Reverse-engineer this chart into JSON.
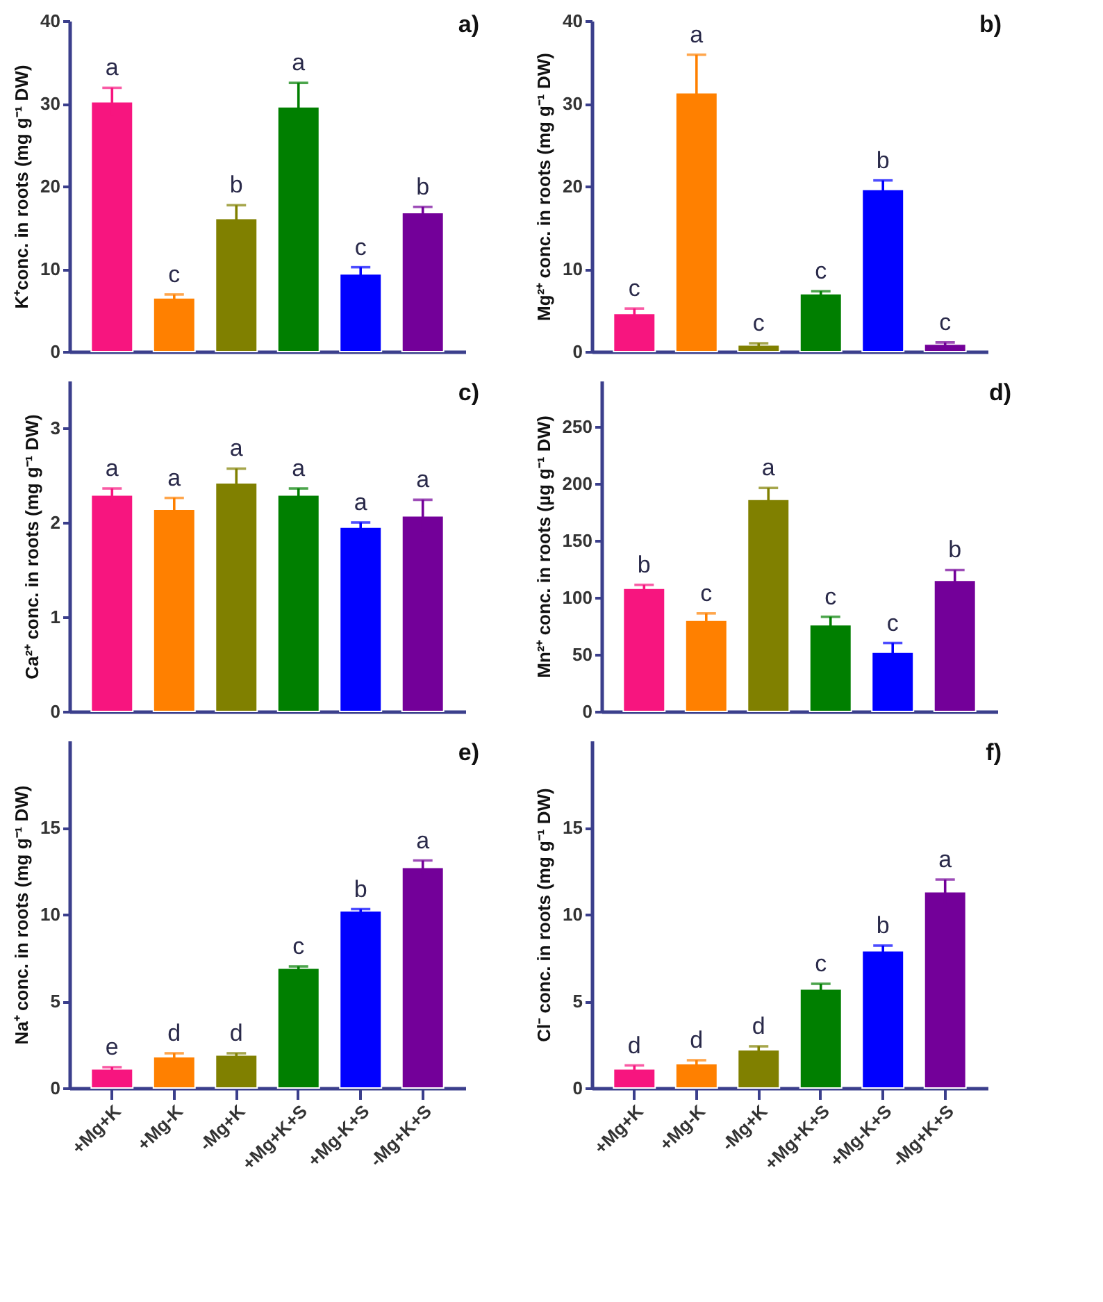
{
  "chart_data": [
    {
      "type": "bar",
      "title": "a)",
      "ylabel": "K⁺conc. in roots (mg g⁻¹ DW)",
      "categories": [
        "+Mg+K",
        "+Mg-K",
        "-Mg+K",
        "+Mg+K+S",
        "+Mg-K+S",
        "-Mg+K+S"
      ],
      "colors": [
        "#f7157f",
        "#ff8000",
        "#808000",
        "#007f00",
        "#0000ff",
        "#730099"
      ],
      "values": [
        30.2,
        6.5,
        16.1,
        29.6,
        9.4,
        16.8
      ],
      "errors": [
        1.7,
        0.4,
        1.6,
        2.9,
        0.8,
        0.7
      ],
      "ylim": [
        0,
        40
      ],
      "yticks": [
        0,
        10,
        20,
        30,
        40
      ],
      "tick_labels": "y",
      "annotations": [
        {
          "text": "a",
          "x": "+Mg+K",
          "y": 31.9
        },
        {
          "text": "c",
          "x": "+Mg-K",
          "y": 6.9
        },
        {
          "text": "b",
          "x": "-Mg+K",
          "y": 17.7
        },
        {
          "text": "a",
          "x": "+Mg+K+S",
          "y": 32.5
        },
        {
          "text": "c",
          "x": "+Mg-K+S",
          "y": 10.2
        },
        {
          "text": "b",
          "x": "-Mg+K+S",
          "y": 17.5
        }
      ]
    },
    {
      "type": "bar",
      "title": "b)",
      "ylabel": "Mg²⁺ conc. in roots (mg g⁻¹ DW)",
      "categories": [
        "+Mg+K",
        "+Mg-K",
        "-Mg+K",
        "+Mg+K+S",
        "+Mg-K+S",
        "-Mg+K+S"
      ],
      "colors": [
        "#f7157f",
        "#ff8000",
        "#808000",
        "#007f00",
        "#0000ff",
        "#730099"
      ],
      "values": [
        4.6,
        31.3,
        0.8,
        7.0,
        19.6,
        0.9
      ],
      "errors": [
        0.6,
        4.6,
        0.2,
        0.3,
        1.1,
        0.2
      ],
      "ylim": [
        0,
        40
      ],
      "yticks": [
        0,
        10,
        20,
        30,
        40
      ],
      "tick_labels": "y",
      "annotations": [
        {
          "text": "c",
          "x": "+Mg+K",
          "y": 5.2
        },
        {
          "text": "a",
          "x": "+Mg-K",
          "y": 35.9
        },
        {
          "text": "c",
          "x": "-Mg+K",
          "y": 1.0
        },
        {
          "text": "c",
          "x": "+Mg+K+S",
          "y": 7.3
        },
        {
          "text": "b",
          "x": "+Mg-K+S",
          "y": 20.7
        },
        {
          "text": "c",
          "x": "-Mg+K+S",
          "y": 1.1
        }
      ]
    },
    {
      "type": "bar",
      "title": "c)",
      "ylabel": "Ca²⁺ conc. in roots (mg g⁻¹ DW)",
      "categories": [
        "+Mg+K",
        "+Mg-K",
        "-Mg+K",
        "+Mg+K+S",
        "+Mg-K+S",
        "-Mg+K+S"
      ],
      "colors": [
        "#f7157f",
        "#ff8000",
        "#808000",
        "#007f00",
        "#0000ff",
        "#730099"
      ],
      "values": [
        2.29,
        2.14,
        2.42,
        2.29,
        1.95,
        2.07
      ],
      "errors": [
        0.07,
        0.12,
        0.15,
        0.07,
        0.05,
        0.17
      ],
      "ylim": [
        0,
        3.5
      ],
      "yticks": [
        0,
        1,
        2,
        3
      ],
      "tick_labels": "y",
      "annotations": [
        {
          "text": "a",
          "x": "+Mg+K",
          "y": 2.36
        },
        {
          "text": "a",
          "x": "+Mg-K",
          "y": 2.26
        },
        {
          "text": "a",
          "x": "-Mg+K",
          "y": 2.57
        },
        {
          "text": "a",
          "x": "+Mg+K+S",
          "y": 2.36
        },
        {
          "text": "a",
          "x": "+Mg-K+S",
          "y": 2.0
        },
        {
          "text": "a",
          "x": "-Mg+K+S",
          "y": 2.24
        }
      ]
    },
    {
      "type": "bar",
      "title": "d)",
      "ylabel": "Mn²⁺ conc. in roots (µg g⁻¹ DW)",
      "categories": [
        "+Mg+K",
        "+Mg-K",
        "-Mg+K",
        "+Mg+K+S",
        "+Mg-K+S",
        "-Mg+K+S"
      ],
      "colors": [
        "#f7157f",
        "#ff8000",
        "#808000",
        "#007f00",
        "#0000ff",
        "#730099"
      ],
      "values": [
        108,
        80,
        186,
        76,
        52,
        115
      ],
      "errors": [
        3,
        6,
        10,
        7,
        8,
        9
      ],
      "ylim": [
        0,
        290
      ],
      "yticks": [
        0,
        50,
        100,
        150,
        200,
        250
      ],
      "tick_labels": "y",
      "annotations": [
        {
          "text": "b",
          "x": "+Mg+K",
          "y": 111
        },
        {
          "text": "c",
          "x": "+Mg-K",
          "y": 86
        },
        {
          "text": "a",
          "x": "-Mg+K",
          "y": 196
        },
        {
          "text": "c",
          "x": "+Mg+K+S",
          "y": 83
        },
        {
          "text": "c",
          "x": "+Mg-K+S",
          "y": 60
        },
        {
          "text": "b",
          "x": "-Mg+K+S",
          "y": 124
        }
      ]
    },
    {
      "type": "bar",
      "title": "e)",
      "ylabel": "Na⁺ conc. in roots (mg g⁻¹ DW)",
      "categories": [
        "+Mg+K",
        "+Mg-K",
        "-Mg+K",
        "+Mg+K+S",
        "+Mg-K+S",
        "-Mg+K+S"
      ],
      "colors": [
        "#f7157f",
        "#ff8000",
        "#808000",
        "#007f00",
        "#0000ff",
        "#730099"
      ],
      "values": [
        1.1,
        1.8,
        1.9,
        6.9,
        10.2,
        12.7
      ],
      "errors": [
        0.1,
        0.2,
        0.1,
        0.1,
        0.1,
        0.4
      ],
      "ylim": [
        0,
        20
      ],
      "yticks": [
        0,
        5,
        10,
        15
      ],
      "annotations": [
        {
          "text": "e",
          "x": "+Mg+K",
          "y": 1.2
        },
        {
          "text": "d",
          "x": "+Mg-K",
          "y": 2.0
        },
        {
          "text": "d",
          "x": "-Mg+K",
          "y": 2.0
        },
        {
          "text": "c",
          "x": "+Mg+K+S",
          "y": 7.0
        },
        {
          "text": "b",
          "x": "+Mg-K+S",
          "y": 10.3
        },
        {
          "text": "a",
          "x": "-Mg+K+S",
          "y": 13.1
        }
      ]
    },
    {
      "type": "bar",
      "title": "f)",
      "ylabel": "Cl⁻  conc. in roots (mg g⁻¹ DW)",
      "categories": [
        "+Mg+K",
        "+Mg-K",
        "-Mg+K",
        "+Mg+K+S",
        "+Mg-K+S",
        "-Mg+K+S"
      ],
      "colors": [
        "#f7157f",
        "#ff8000",
        "#808000",
        "#007f00",
        "#0000ff",
        "#730099"
      ],
      "values": [
        1.1,
        1.4,
        2.2,
        5.7,
        7.9,
        11.3
      ],
      "errors": [
        0.2,
        0.2,
        0.2,
        0.3,
        0.3,
        0.7
      ],
      "ylim": [
        0,
        20
      ],
      "yticks": [
        0,
        5,
        10,
        15
      ],
      "annotations": [
        {
          "text": "d",
          "x": "+Mg+K",
          "y": 1.3
        },
        {
          "text": "d",
          "x": "+Mg-K",
          "y": 1.6
        },
        {
          "text": "d",
          "x": "-Mg+K",
          "y": 2.4
        },
        {
          "text": "c",
          "x": "+Mg+K+S",
          "y": 6.0
        },
        {
          "text": "b",
          "x": "+Mg-K+S",
          "y": 8.2
        },
        {
          "text": "a",
          "x": "-Mg+K+S",
          "y": 12.0
        }
      ]
    }
  ]
}
